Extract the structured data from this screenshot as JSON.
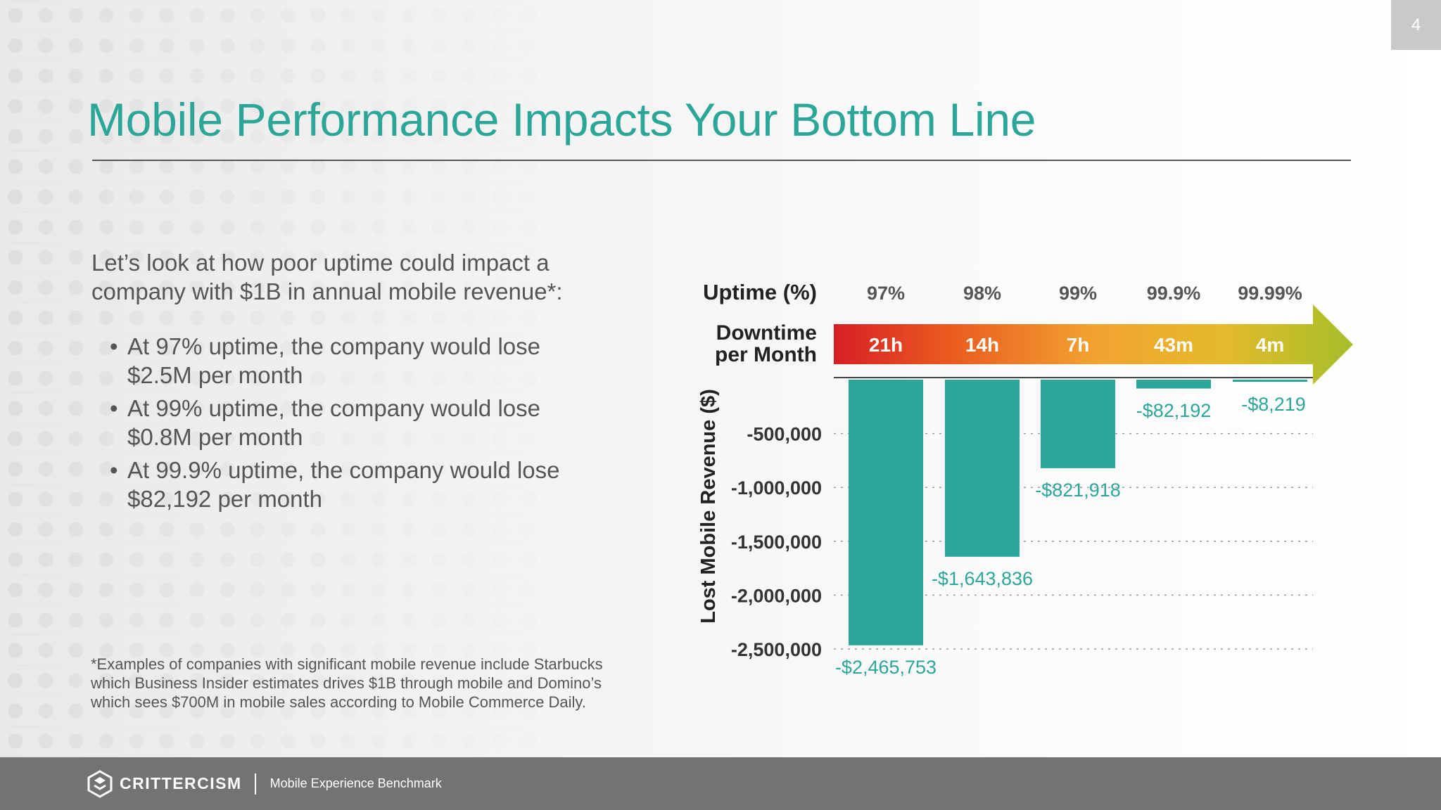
{
  "page_number": "4",
  "title": "Mobile Performance Impacts Your Bottom Line",
  "intro": "Let’s look at how poor uptime could impact a company with $1B in annual mobile revenue*:",
  "bullets": [
    "At 97% uptime, the company would lose $2.5M per month",
    "At 99% uptime, the company would lose $0.8M  per month",
    "At 99.9% uptime, the company would lose $82,192 per month"
  ],
  "footnote": "*Examples of companies with significant mobile revenue include Starbucks which Business Insider estimates drives $1B through mobile and Domino’s which sees $700M in mobile sales according to Mobile Commerce Daily.",
  "footer": {
    "brand": "CRITTERCISM",
    "caption": "Mobile Experience Benchmark"
  },
  "colors": {
    "accent": "#2ba699",
    "footer": "#737373",
    "arrow_gradient": [
      "#d71f26",
      "#ea5a1f",
      "#f2a231",
      "#e4ba2b",
      "#a6bf2a"
    ]
  },
  "chart_data": {
    "type": "bar",
    "uptime_header": "Uptime (%)",
    "downtime_header": [
      "Downtime",
      "per Month"
    ],
    "categories": [
      "97%",
      "98%",
      "99%",
      "99.9%",
      "99.99%"
    ],
    "downtime": [
      "21h",
      "14h",
      "7h",
      "43m",
      "4m"
    ],
    "values": [
      -2465753,
      -1643836,
      -821918,
      -82192,
      -8219
    ],
    "data_labels": [
      "-$2,465,753",
      "-$1,643,836",
      "-$821,918",
      "-$82,192",
      "-$8,219"
    ],
    "ylabel": "Lost Mobile Revenue ($)",
    "ylim": [
      -2500000,
      0
    ],
    "yticks": [
      -500000,
      -1000000,
      -1500000,
      -2000000,
      -2500000
    ],
    "ytick_labels": [
      "-500,000",
      "-1,000,000",
      "-1,500,000",
      "-2,000,000",
      "-2,500,000"
    ],
    "grid": "dotted horizontal",
    "bar_color": "#2ba699"
  }
}
